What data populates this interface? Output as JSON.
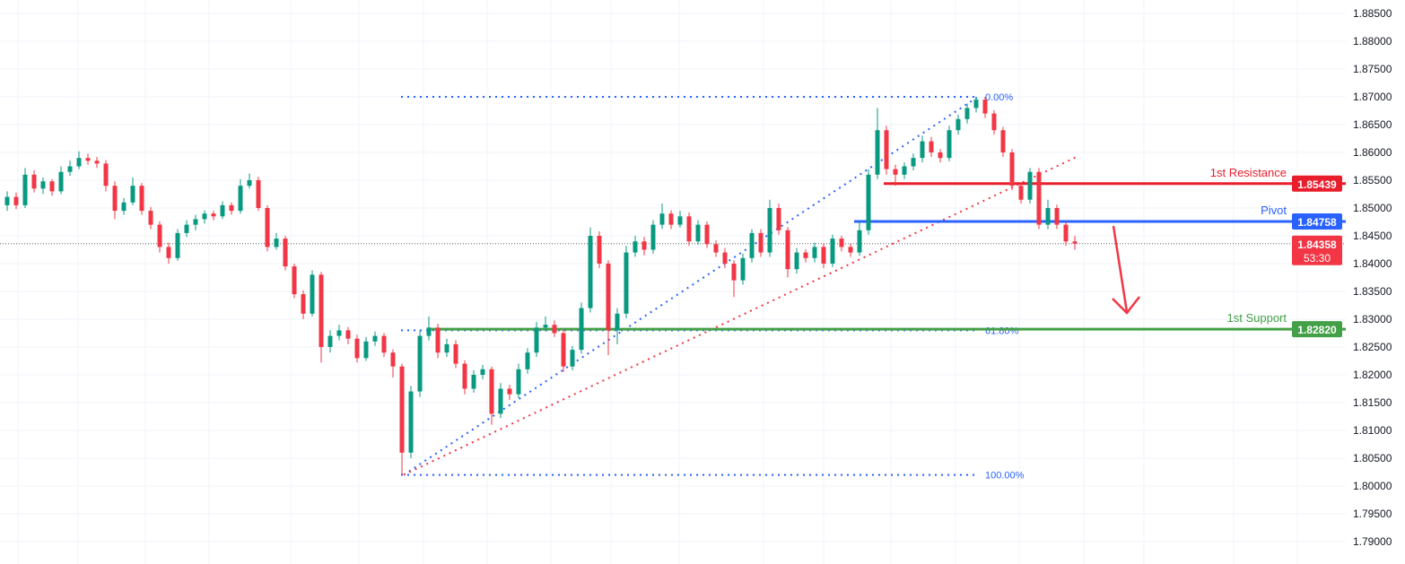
{
  "chart_data": {
    "type": "candlestick",
    "y_axis": {
      "position": "right",
      "ylim": [
        1.79,
        1.885
      ],
      "ticks": [
        "1.79000",
        "1.79500",
        "1.80000",
        "1.80500",
        "1.81000",
        "1.81500",
        "1.82000",
        "1.82500",
        "1.83000",
        "1.83500",
        "1.84000",
        "1.84500",
        "1.85000",
        "1.85500",
        "1.86000",
        "1.86500",
        "1.87000",
        "1.87500",
        "1.88000",
        "1.88500"
      ]
    },
    "grid": true,
    "colors": {
      "up": "#089981",
      "down": "#f23645",
      "fib": "#2962ff",
      "trend": "#f23645",
      "resistance": "#e91e2c",
      "pivot": "#2962ff",
      "support": "#43a047"
    },
    "candles_ohlc": [
      [
        1.8505,
        1.853,
        1.8495,
        1.852
      ],
      [
        1.852,
        1.8528,
        1.8498,
        1.8505
      ],
      [
        1.8505,
        1.8572,
        1.85,
        1.856
      ],
      [
        1.856,
        1.8568,
        1.8528,
        1.8535
      ],
      [
        1.8535,
        1.8555,
        1.8525,
        1.8548
      ],
      [
        1.8548,
        1.8552,
        1.8522,
        1.853
      ],
      [
        1.853,
        1.8575,
        1.8525,
        1.8565
      ],
      [
        1.8565,
        1.8585,
        1.8558,
        1.8575
      ],
      [
        1.8575,
        1.8602,
        1.857,
        1.859
      ],
      [
        1.859,
        1.8598,
        1.8578,
        1.8585
      ],
      [
        1.8585,
        1.8592,
        1.8572,
        1.858
      ],
      [
        1.858,
        1.8586,
        1.853,
        1.854
      ],
      [
        1.854,
        1.8548,
        1.848,
        1.8495
      ],
      [
        1.8495,
        1.8518,
        1.8488,
        1.851
      ],
      [
        1.851,
        1.8555,
        1.8505,
        1.854
      ],
      [
        1.854,
        1.8545,
        1.8488,
        1.8495
      ],
      [
        1.8495,
        1.8502,
        1.8462,
        1.847
      ],
      [
        1.847,
        1.8476,
        1.842,
        1.843
      ],
      [
        1.843,
        1.8438,
        1.84,
        1.841
      ],
      [
        1.841,
        1.8462,
        1.8405,
        1.8455
      ],
      [
        1.8455,
        1.8478,
        1.8448,
        1.847
      ],
      [
        1.847,
        1.8488,
        1.846,
        1.848
      ],
      [
        1.848,
        1.8496,
        1.8472,
        1.849
      ],
      [
        1.849,
        1.8495,
        1.8478,
        1.8485
      ],
      [
        1.8485,
        1.8512,
        1.848,
        1.8505
      ],
      [
        1.8505,
        1.851,
        1.8488,
        1.8495
      ],
      [
        1.8495,
        1.8552,
        1.849,
        1.854
      ],
      [
        1.854,
        1.8562,
        1.8535,
        1.855
      ],
      [
        1.855,
        1.8556,
        1.8495,
        1.85
      ],
      [
        1.85,
        1.8505,
        1.8422,
        1.843
      ],
      [
        1.843,
        1.8455,
        1.8425,
        1.8445
      ],
      [
        1.8445,
        1.845,
        1.8388,
        1.8395
      ],
      [
        1.8395,
        1.84,
        1.8338,
        1.8345
      ],
      [
        1.8345,
        1.8352,
        1.83,
        1.831
      ],
      [
        1.831,
        1.8388,
        1.8305,
        1.838
      ],
      [
        1.838,
        1.8385,
        1.8222,
        1.825
      ],
      [
        1.825,
        1.828,
        1.824,
        1.827
      ],
      [
        1.827,
        1.829,
        1.8262,
        1.828
      ],
      [
        1.828,
        1.8286,
        1.8255,
        1.8265
      ],
      [
        1.8265,
        1.8272,
        1.8222,
        1.823
      ],
      [
        1.823,
        1.8268,
        1.8225,
        1.826
      ],
      [
        1.826,
        1.8278,
        1.8252,
        1.827
      ],
      [
        1.827,
        1.8275,
        1.8232,
        1.824
      ],
      [
        1.824,
        1.8246,
        1.8195,
        1.8215
      ],
      [
        1.8215,
        1.822,
        1.802,
        1.806
      ],
      [
        1.806,
        1.818,
        1.805,
        1.817
      ],
      [
        1.817,
        1.828,
        1.816,
        1.827
      ],
      [
        1.827,
        1.8305,
        1.8262,
        1.8285
      ],
      [
        1.8285,
        1.8292,
        1.823,
        1.824
      ],
      [
        1.824,
        1.8265,
        1.8232,
        1.8255
      ],
      [
        1.8255,
        1.8262,
        1.8212,
        1.822
      ],
      [
        1.822,
        1.8226,
        1.8165,
        1.8175
      ],
      [
        1.8175,
        1.8208,
        1.8168,
        1.82
      ],
      [
        1.82,
        1.8218,
        1.8192,
        1.821
      ],
      [
        1.821,
        1.8215,
        1.811,
        1.813
      ],
      [
        1.813,
        1.8185,
        1.8122,
        1.8175
      ],
      [
        1.8175,
        1.8182,
        1.8155,
        1.8165
      ],
      [
        1.8165,
        1.822,
        1.8158,
        1.821
      ],
      [
        1.821,
        1.8248,
        1.8202,
        1.824
      ],
      [
        1.824,
        1.8295,
        1.8232,
        1.8285
      ],
      [
        1.8285,
        1.8305,
        1.8278,
        1.829
      ],
      [
        1.829,
        1.8298,
        1.8268,
        1.8275
      ],
      [
        1.8275,
        1.8282,
        1.8205,
        1.8215
      ],
      [
        1.8215,
        1.8252,
        1.8208,
        1.8245
      ],
      [
        1.8245,
        1.833,
        1.8238,
        1.832
      ],
      [
        1.832,
        1.8465,
        1.8312,
        1.845
      ],
      [
        1.845,
        1.8458,
        1.8392,
        1.84
      ],
      [
        1.84,
        1.8406,
        1.8235,
        1.828
      ],
      [
        1.828,
        1.832,
        1.8255,
        1.831
      ],
      [
        1.831,
        1.8432,
        1.8302,
        1.842
      ],
      [
        1.842,
        1.845,
        1.8412,
        1.844
      ],
      [
        1.844,
        1.8448,
        1.8415,
        1.8425
      ],
      [
        1.8425,
        1.8478,
        1.8418,
        1.847
      ],
      [
        1.847,
        1.8508,
        1.8462,
        1.849
      ],
      [
        1.849,
        1.8496,
        1.8462,
        1.847
      ],
      [
        1.847,
        1.8495,
        1.8465,
        1.8485
      ],
      [
        1.8485,
        1.8492,
        1.8432,
        1.844
      ],
      [
        1.844,
        1.8478,
        1.8434,
        1.847
      ],
      [
        1.847,
        1.8476,
        1.8428,
        1.8435
      ],
      [
        1.8435,
        1.8442,
        1.8412,
        1.842
      ],
      [
        1.842,
        1.8428,
        1.8392,
        1.84
      ],
      [
        1.84,
        1.8406,
        1.834,
        1.837
      ],
      [
        1.837,
        1.8418,
        1.8362,
        1.841
      ],
      [
        1.841,
        1.8462,
        1.8402,
        1.8455
      ],
      [
        1.8455,
        1.8462,
        1.8412,
        1.842
      ],
      [
        1.842,
        1.8515,
        1.8412,
        1.85
      ],
      [
        1.85,
        1.8508,
        1.8452,
        1.846
      ],
      [
        1.846,
        1.8466,
        1.8375,
        1.839
      ],
      [
        1.839,
        1.8428,
        1.8382,
        1.842
      ],
      [
        1.842,
        1.8426,
        1.8402,
        1.841
      ],
      [
        1.841,
        1.8438,
        1.8402,
        1.843
      ],
      [
        1.843,
        1.8436,
        1.8392,
        1.84
      ],
      [
        1.84,
        1.8452,
        1.8394,
        1.8445
      ],
      [
        1.8445,
        1.845,
        1.8422,
        1.843
      ],
      [
        1.843,
        1.8436,
        1.8412,
        1.842
      ],
      [
        1.842,
        1.8476,
        1.8414,
        1.846
      ],
      [
        1.846,
        1.857,
        1.8452,
        1.856
      ],
      [
        1.856,
        1.868,
        1.8552,
        1.864
      ],
      [
        1.864,
        1.8648,
        1.856,
        1.857
      ],
      [
        1.857,
        1.8578,
        1.854,
        1.856
      ],
      [
        1.856,
        1.8582,
        1.8552,
        1.8575
      ],
      [
        1.8575,
        1.8598,
        1.8568,
        1.859
      ],
      [
        1.859,
        1.863,
        1.8582,
        1.862
      ],
      [
        1.862,
        1.8628,
        1.8592,
        1.86
      ],
      [
        1.86,
        1.8606,
        1.8582,
        1.859
      ],
      [
        1.859,
        1.8648,
        1.8584,
        1.864
      ],
      [
        1.864,
        1.8668,
        1.8632,
        1.866
      ],
      [
        1.866,
        1.8688,
        1.8652,
        1.868
      ],
      [
        1.868,
        1.87,
        1.8672,
        1.8695
      ],
      [
        1.8695,
        1.87,
        1.8662,
        1.867
      ],
      [
        1.867,
        1.8676,
        1.8632,
        1.864
      ],
      [
        1.864,
        1.8646,
        1.8592,
        1.86
      ],
      [
        1.86,
        1.8606,
        1.8532,
        1.854
      ],
      [
        1.854,
        1.8546,
        1.8508,
        1.8515
      ],
      [
        1.8515,
        1.8572,
        1.8508,
        1.8565
      ],
      [
        1.8565,
        1.8572,
        1.8462,
        1.847
      ],
      [
        1.847,
        1.8515,
        1.8462,
        1.85
      ],
      [
        1.85,
        1.8506,
        1.8462,
        1.847
      ],
      [
        1.847,
        1.8476,
        1.8432,
        1.844
      ],
      [
        1.844,
        1.845,
        1.8425,
        1.8436
      ]
    ],
    "fibonacci": [
      {
        "level": 1.87,
        "label": "0.00%"
      },
      {
        "level": 1.828,
        "label": "61.80%"
      },
      {
        "level": 1.802,
        "label": "100.00%"
      }
    ],
    "levels": [
      {
        "name": "1st Resistance",
        "price": 1.85439,
        "tag": "1.85439",
        "color": "#e91e2c"
      },
      {
        "name": "Pivot",
        "price": 1.84758,
        "tag": "1.84758",
        "color": "#2962ff"
      },
      {
        "name": "1st Support",
        "price": 1.8282,
        "tag": "1.82820",
        "color": "#43a047"
      }
    ],
    "current_price": {
      "price": 1.84358,
      "tag": "1.84358",
      "countdown": "53:30",
      "color": "#f23645"
    },
    "annotations": [
      {
        "type": "arrow",
        "direction": "down",
        "color": "#f23645"
      }
    ]
  }
}
